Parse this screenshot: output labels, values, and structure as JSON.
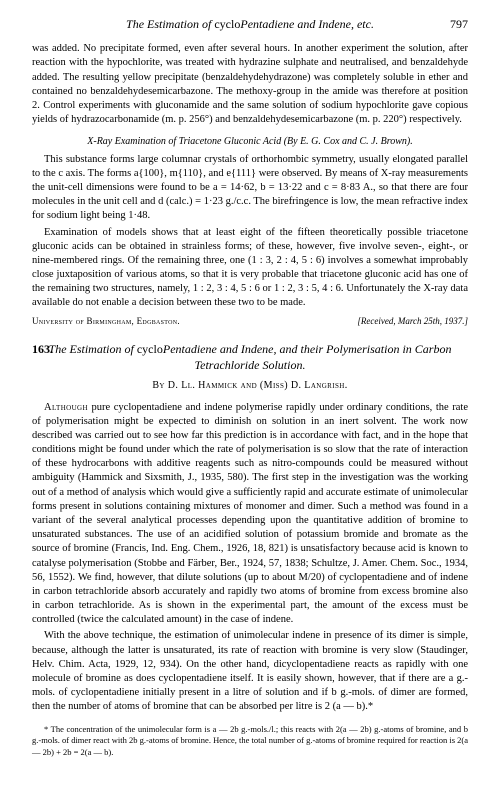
{
  "runningHead": {
    "titleLeft": "The Estimation of ",
    "titleMid": "cyclo",
    "titleItal": "Pentadiene and Indene, etc.",
    "pageNum": "797"
  },
  "para1": "was added. No precipitate formed, even after several hours. In another experiment the solution, after reaction with the hypochlorite, was treated with hydrazine sulphate and neutralised, and benzaldehyde added. The resulting yellow precipitate (benzaldehydehydrazone) was completely soluble in ether and contained no benzaldehydesemicarbazone. The methoxy-group in the amide was therefore at position 2. Control experiments with gluconamide and the same solution of sodium hypochlorite gave copious yields of hydrazocarbonamide (m. p. 256°) and benzaldehydesemicarbazone (m. p. 220°) respectively.",
  "xrayHead": "X-Ray Examination of Triacetone Gluconic Acid (By E. G. Cox and C. J. Brown).",
  "para2": "This substance forms large columnar crystals of orthorhombic symmetry, usually elongated parallel to the c axis. The forms a{100}, m{110}, and e{111} were observed. By means of X-ray measurements the unit-cell dimensions were found to be a = 14·62, b = 13·22 and c = 8·83 A., so that there are four molecules in the unit cell and d (calc.) = 1·23 g./c.c. The birefringence is low, the mean refractive index for sodium light being 1·48.",
  "para3": "Examination of models shows that at least eight of the fifteen theoretically possible triacetone gluconic acids can be obtained in strainless forms; of these, however, five involve seven-, eight-, or nine-membered rings. Of the remaining three, one (1 : 3, 2 : 4, 5 : 6) involves a somewhat improbably close juxtaposition of various atoms, so that it is very probable that triacetone gluconic acid has one of the remaining two structures, namely, 1 : 2, 3 : 4, 5 : 6 or 1 : 2, 3 : 5, 4 : 6. Unfortunately the X-ray data available do not enable a decision between these two to be made.",
  "affil": {
    "left": "University of Birmingham, Edgbaston.",
    "right": "[Received, March 25th, 1937.]"
  },
  "section": {
    "num": "163.",
    "title1": "The Estimation of ",
    "titleCyclo": "cyclo",
    "title2": "Pentadiene and Indene, and their Polymerisation in Carbon Tetrachloride Solution."
  },
  "byline": "By D. Ll. Hammick and (Miss) D. Langrish.",
  "para4a": "Although",
  "para4": " pure cyclopentadiene and indene polymerise rapidly under ordinary conditions, the rate of polymerisation might be expected to diminish on solution in an inert solvent. The work now described was carried out to see how far this prediction is in accordance with fact, and in the hope that conditions might be found under which the rate of polymerisation is so slow that the rate of interaction of these hydrocarbons with additive reagents such as nitro-compounds could be measured without ambiguity (Hammick and Sixsmith, J., 1935, 580). The first step in the investigation was the working out of a method of analysis which would give a sufficiently rapid and accurate estimate of unimolecular forms present in solutions containing mixtures of monomer and dimer. Such a method was found in a variant of the several analytical processes depending upon the quantitative addition of bromine to unsaturated substances. The use of an acidified solution of potassium bromide and bromate as the source of bromine (Francis, Ind. Eng. Chem., 1926, 18, 821) is unsatisfactory because acid is known to catalyse polymerisation (Stobbe and Färber, Ber., 1924, 57, 1838; Schultze, J. Amer. Chem. Soc., 1934, 56, 1552). We find, however, that dilute solutions (up to about M/20) of cyclopentadiene and of indene in carbon tetrachloride absorb accurately and rapidly two atoms of bromine from excess bromine also in carbon tetrachloride. As is shown in the experimental part, the amount of the excess must be controlled (twice the calculated amount) in the case of indene.",
  "para5": "With the above technique, the estimation of unimolecular indene in presence of its dimer is simple, because, although the latter is unsaturated, its rate of reaction with bromine is very slow (Staudinger, Helv. Chim. Acta, 1929, 12, 934). On the other hand, dicyclopentadiene reacts as rapidly with one molecule of bromine as does cyclopentadiene itself. It is easily shown, however, that if there are a g.-mols. of cyclopentadiene initially present in a litre of solution and if b g.-mols. of dimer are formed, then the number of atoms of bromine that can be absorbed per litre is 2 (a — b).*",
  "footnote": "* The concentration of the unimolecular form is a — 2b g.-mols./l.; this reacts with 2(a — 2b) g.-atoms of bromine, and b g.-mols. of dimer react with 2b g.-atoms of bromine. Hence, the total number of g.-atoms of bromine required for reaction is 2(a — 2b) + 2b = 2(a — b)."
}
